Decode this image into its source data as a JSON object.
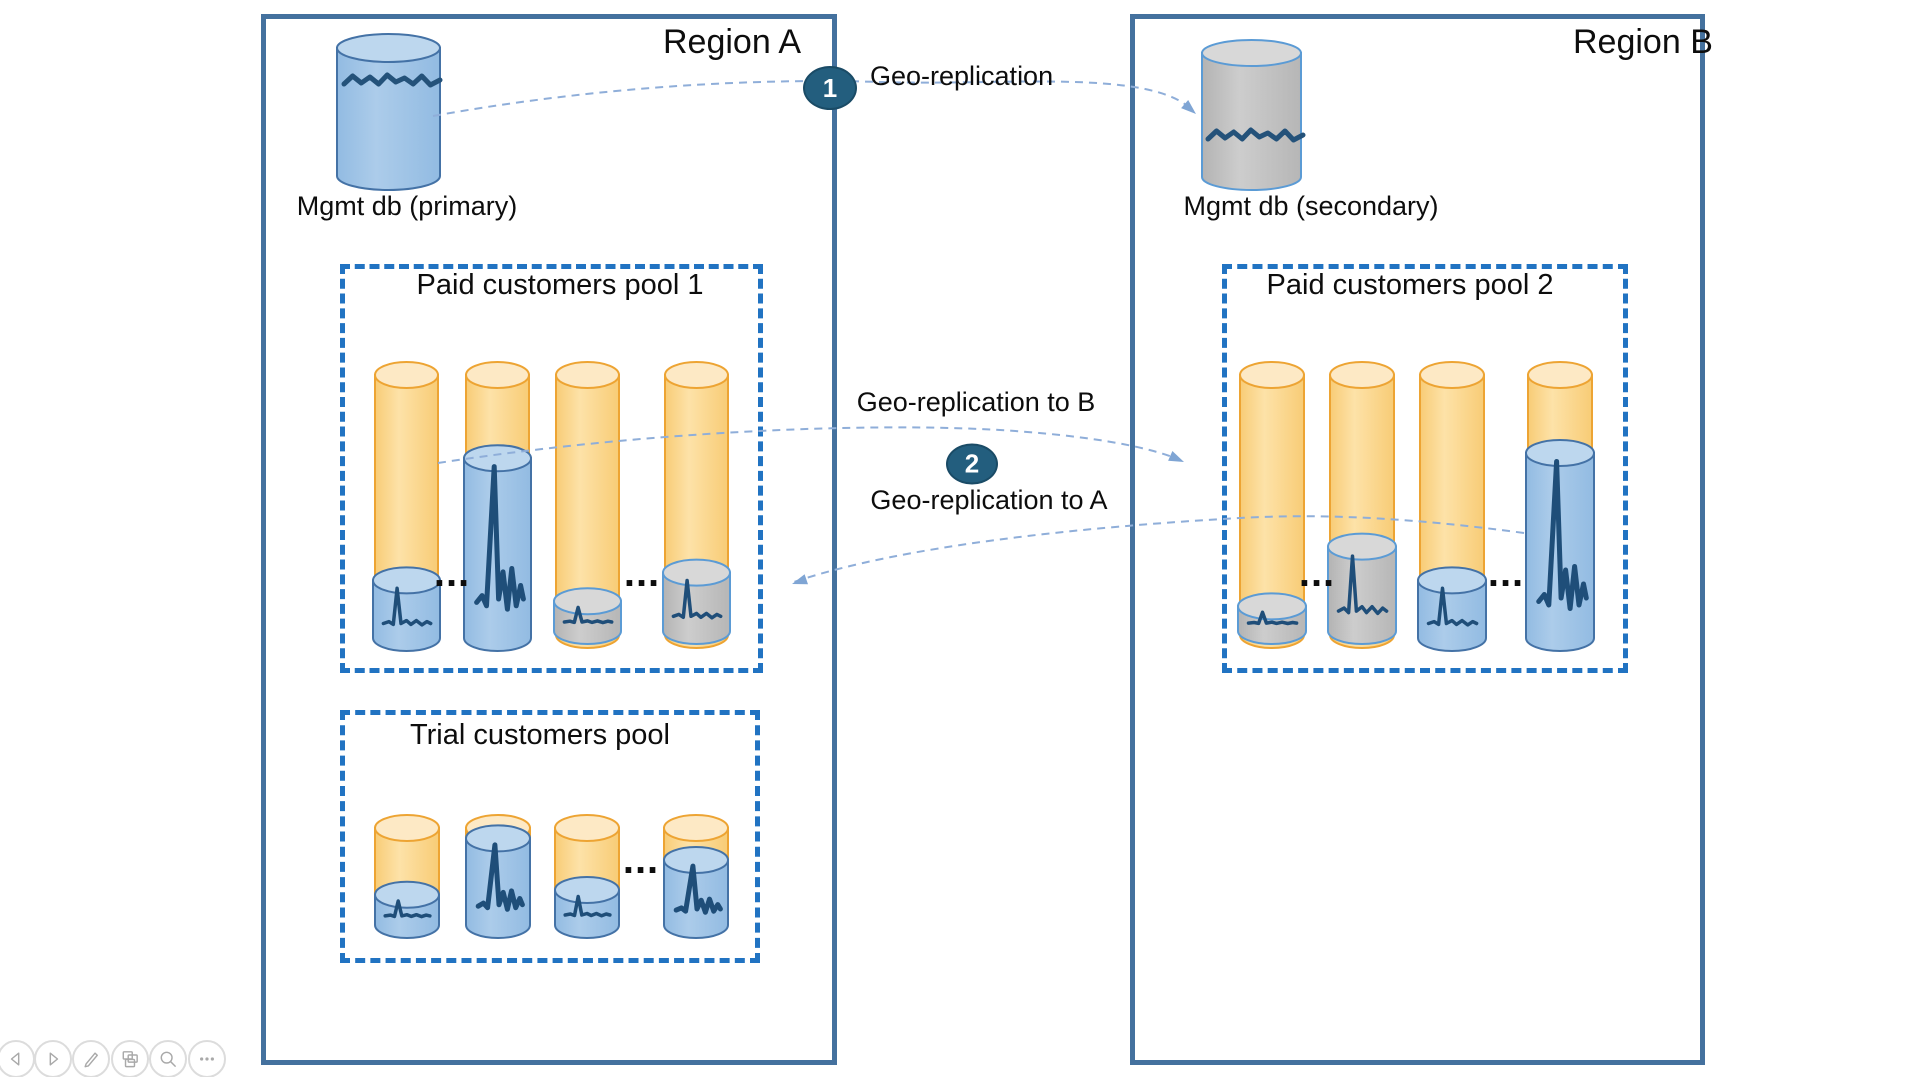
{
  "slide": {
    "regions": [
      {
        "id": "a",
        "title": "Region A"
      },
      {
        "id": "b",
        "title": "Region B"
      }
    ],
    "databases": [
      {
        "id": "mgmt-primary",
        "label": "Mgmt db (primary)",
        "scheme": "blue"
      },
      {
        "id": "mgmt-secondary",
        "label": "Mgmt db (secondary)",
        "scheme": "gray"
      }
    ],
    "connections": [
      {
        "badge": "1",
        "label": "Geo-replication",
        "from": "mgmt-primary",
        "to": "mgmt-secondary"
      },
      {
        "badge": "2",
        "label_to_b": "Geo-replication to B",
        "label_to_a": "Geo-replication to A"
      }
    ],
    "pools": [
      {
        "id": "pool1",
        "region": "a",
        "title": "Paid customers pool 1",
        "cylinders": [
          {
            "db": "blue",
            "level": 0.21
          },
          {
            "db": "blue",
            "level": 0.68
          },
          {
            "db": "gray",
            "level": 0.13
          },
          {
            "db": "gray",
            "level": 0.24
          }
        ]
      },
      {
        "id": "pool2",
        "region": "b",
        "title": "Paid customers pool 2",
        "cylinders": [
          {
            "db": "gray",
            "level": 0.11
          },
          {
            "db": "gray",
            "level": 0.34
          },
          {
            "db": "blue",
            "level": 0.21
          },
          {
            "db": "blue",
            "level": 0.7
          }
        ]
      },
      {
        "id": "trial",
        "region": "a",
        "title": "Trial customers pool",
        "cylinders": [
          {
            "db": "blue",
            "level": 0.29
          },
          {
            "db": "blue",
            "level": 0.89
          },
          {
            "db": "blue",
            "level": 0.34
          },
          {
            "db": "blue",
            "level": 0.66
          }
        ]
      }
    ],
    "ellipsis": "..."
  },
  "toolbar": {
    "buttons": [
      "previous",
      "next",
      "pen",
      "all-slides",
      "zoom",
      "more"
    ]
  },
  "colors": {
    "region_border": "#44719E",
    "pool_border": "#2173C2",
    "orange_border": "#EDA433",
    "orange_lid": "#FDE9C5",
    "blue_body": "#9DC3E6",
    "blue_lid": "#BDD7EE",
    "blue_border": "#4472A6",
    "gray_body": "#BFBFBF",
    "gray_lid": "#D8D8D8",
    "gray_border": "#5B9BD5",
    "sparkline": "#1F4E79",
    "arrow": "#8FAED9",
    "arrowhead": "#7FA5D4",
    "badge_bg": "#235E7E",
    "text": "#0D0D0D"
  }
}
